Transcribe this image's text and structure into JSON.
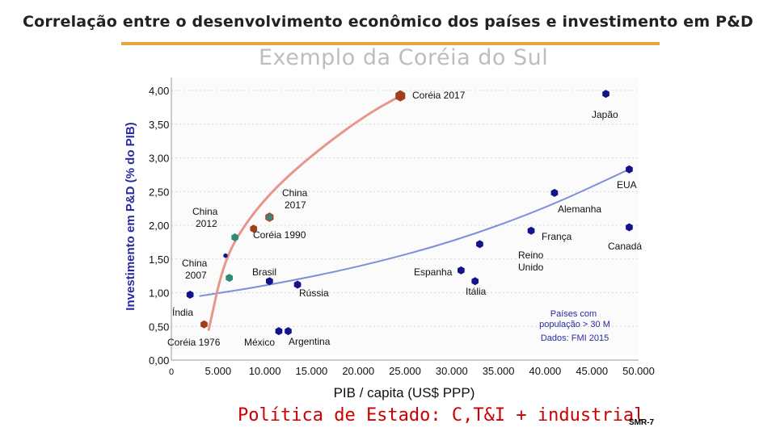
{
  "page": {
    "title": "Correlação entre o desenvolvimento econômico dos países e investimento em P&D",
    "subtitle": "Exemplo da Coréia do Sul",
    "footer": "Política de Estado: C,T&I + industrial",
    "code": "SMR-7"
  },
  "chart_data": {
    "type": "scatter",
    "xlabel": "PIB / capita (US$ PPP)",
    "ylabel": "Investimento em P&D (% do PIB)",
    "xlim": [
      0,
      50000
    ],
    "ylim": [
      0,
      4
    ],
    "x_ticks": [
      0,
      5000,
      10000,
      15000,
      20000,
      25000,
      30000,
      35000,
      40000,
      45000,
      50000
    ],
    "x_tick_labels": [
      "0",
      "5.000",
      "10.000",
      "15.000",
      "20.000",
      "25.000",
      "30.000",
      "35.000",
      "40.000",
      "45.000",
      "50.000"
    ],
    "y_ticks": [
      0,
      0.5,
      1,
      1.5,
      2,
      2.5,
      3,
      3.5,
      4
    ],
    "y_tick_labels": [
      "0,00",
      "0,50",
      "1,00",
      "1,50",
      "2,00",
      "2,50",
      "3,00",
      "3,50",
      "4,00"
    ],
    "colors": {
      "korea": "#a0401a",
      "developed": "#14148a",
      "china": "#2e8b7a",
      "trend": "#7f8fd8",
      "korea_path": "#e8958a",
      "notes": "#2a2aa0"
    },
    "series": [
      {
        "name": "Coréia",
        "points": [
          {
            "label": "Coréia 1976",
            "x": 3500,
            "y": 0.53
          },
          {
            "label": "Coréia 1990",
            "x": 8800,
            "y": 1.95
          },
          {
            "label": "Coréia 2017",
            "x": 24500,
            "y": 3.92
          }
        ]
      },
      {
        "name": "China",
        "points": [
          {
            "label": "China 2007",
            "x": 6200,
            "y": 1.22
          },
          {
            "label": "China 2012",
            "x": 6800,
            "y": 1.82
          },
          {
            "label": "China 2017",
            "x": 10500,
            "y": 2.12
          }
        ]
      },
      {
        "name": "Países com população > 30 M",
        "points": [
          {
            "label": "Japão",
            "x": 46500,
            "y": 3.95
          },
          {
            "label": "EUA",
            "x": 49000,
            "y": 2.83
          },
          {
            "label": "Alemanha",
            "x": 41000,
            "y": 2.48
          },
          {
            "label": "França",
            "x": 38500,
            "y": 1.92
          },
          {
            "label": "Canadá",
            "x": 49000,
            "y": 1.97
          },
          {
            "label": "Reino Unido",
            "x": 33000,
            "y": 1.72
          },
          {
            "label": "Espanha",
            "x": 31000,
            "y": 1.33
          },
          {
            "label": "Itália",
            "x": 32500,
            "y": 1.17
          },
          {
            "label": "Rússia",
            "x": 13500,
            "y": 1.12
          },
          {
            "label": "Brasil",
            "x": 10500,
            "y": 1.17
          },
          {
            "label": "Índia",
            "x": 2000,
            "y": 0.97
          },
          {
            "label": "México",
            "x": 11500,
            "y": 0.43
          },
          {
            "label": "Argentina",
            "x": 12500,
            "y": 0.43
          },
          {
            "label": "",
            "x": 5800,
            "y": 1.55
          }
        ]
      }
    ],
    "annotations": {
      "korea_1976": "Coréia 1976",
      "korea_1990": "Coréia 1990",
      "korea_2017": "Coréia 2017",
      "china_2007": "China 2007",
      "china_2012": "China 2012",
      "china_2017": "China 2017",
      "japao": "Japão",
      "eua": "EUA",
      "alemanha": "Alemanha",
      "franca": "França",
      "canada": "Canadá",
      "reino_unido": "Reino Unido",
      "espanha": "Espanha",
      "italia": "Itália",
      "russia": "Rússia",
      "brasil": "Brasil",
      "india": "Índia",
      "mexico": "México",
      "argentina": "Argentina",
      "note_population": "Países com população > 30 M",
      "note_source": "Dados: FMI 2015"
    },
    "trend": {
      "name": "tendência países com população > 30 M",
      "points": [
        [
          3000,
          0.95
        ],
        [
          10000,
          1.1
        ],
        [
          20000,
          1.38
        ],
        [
          30000,
          1.75
        ],
        [
          40000,
          2.25
        ],
        [
          49000,
          2.83
        ]
      ]
    },
    "korea_path": {
      "name": "trajetória Coréia",
      "points": [
        [
          4000,
          0.45
        ],
        [
          5500,
          1.4
        ],
        [
          7500,
          1.95
        ],
        [
          11000,
          2.55
        ],
        [
          16000,
          3.15
        ],
        [
          21000,
          3.65
        ],
        [
          24500,
          3.92
        ]
      ]
    }
  }
}
